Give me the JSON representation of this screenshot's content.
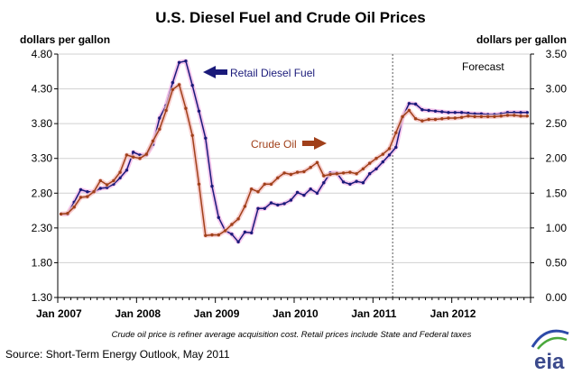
{
  "chart_data": {
    "type": "line",
    "title": "U.S. Diesel Fuel and Crude Oil Prices",
    "ylabel_left": "dollars per gallon",
    "ylabel_right": "dollars per gallon",
    "ylim_left": [
      1.3,
      4.8
    ],
    "ylim_right": [
      0.0,
      3.5
    ],
    "yticks_left": [
      "1.30",
      "1.80",
      "2.30",
      "2.80",
      "3.30",
      "3.80",
      "4.30",
      "4.80"
    ],
    "yticks_right": [
      "0.00",
      "0.50",
      "1.00",
      "1.50",
      "2.00",
      "2.50",
      "3.00",
      "3.50"
    ],
    "x_tick_labels": [
      "Jan 2007",
      "Jan 2008",
      "Jan 2009",
      "Jan 2010",
      "Jan 2011",
      "Jan 2012"
    ],
    "x_start": "Jan 2007",
    "x_end": "Dec 2012",
    "forecast_label": "Forecast",
    "forecast_start": "Apr 2011",
    "grid": true,
    "series": [
      {
        "name": "Retail Diesel Fuel",
        "axis": "left",
        "color": "#1a1a7a",
        "values": [
          2.5,
          2.5,
          2.67,
          2.85,
          2.82,
          2.82,
          2.87,
          2.88,
          2.93,
          3.02,
          3.13,
          3.39,
          3.35,
          3.35,
          3.5,
          3.88,
          4.06,
          4.39,
          4.68,
          4.7,
          4.35,
          3.98,
          3.59,
          2.9,
          2.45,
          2.26,
          2.21,
          2.1,
          2.24,
          2.23,
          2.58,
          2.58,
          2.66,
          2.63,
          2.65,
          2.7,
          2.81,
          2.77,
          2.86,
          2.8,
          2.95,
          3.09,
          3.09,
          2.96,
          2.93,
          2.97,
          2.95,
          3.08,
          3.15,
          3.25,
          3.35,
          3.46,
          3.89,
          4.09,
          4.08,
          4.0,
          3.99,
          3.98,
          3.97,
          3.96,
          3.96,
          3.96,
          3.95,
          3.94,
          3.94,
          3.93,
          3.93,
          3.94,
          3.96,
          3.96,
          3.96,
          3.96
        ]
      },
      {
        "name": "Crude Oil",
        "axis": "right",
        "color": "#a0401a",
        "values": [
          1.2,
          1.21,
          1.3,
          1.44,
          1.45,
          1.52,
          1.68,
          1.62,
          1.68,
          1.8,
          2.05,
          2.02,
          2.0,
          2.06,
          2.25,
          2.42,
          2.69,
          2.99,
          3.06,
          2.72,
          2.33,
          1.63,
          0.89,
          0.9,
          0.9,
          0.96,
          1.05,
          1.13,
          1.31,
          1.56,
          1.52,
          1.63,
          1.63,
          1.72,
          1.79,
          1.77,
          1.8,
          1.81,
          1.87,
          1.94,
          1.75,
          1.77,
          1.78,
          1.79,
          1.8,
          1.78,
          1.85,
          1.93,
          2.0,
          2.06,
          2.14,
          2.37,
          2.6,
          2.69,
          2.57,
          2.54,
          2.56,
          2.56,
          2.57,
          2.58,
          2.58,
          2.59,
          2.61,
          2.6,
          2.6,
          2.6,
          2.6,
          2.61,
          2.62,
          2.62,
          2.61,
          2.61
        ]
      }
    ],
    "annotations": [
      "Retail Diesel Fuel",
      "Crude Oil"
    ]
  },
  "footnote": "Crude oil price is refiner average acquisition cost.  Retail prices include State and Federal taxes",
  "source": "Source: Short-Term Energy Outlook, May 2011",
  "logo_text": "eia",
  "colors": {
    "diesel": "#1a1a7a",
    "crude": "#a0401a",
    "diesel_glow": "#f2b8e8",
    "crude_glow": "#f5c2c2",
    "grid": "#d0d0d0",
    "logo": "#3b4a8c",
    "logo_arc_blue": "#2d4aa8",
    "logo_arc_green": "#4aa83c"
  }
}
